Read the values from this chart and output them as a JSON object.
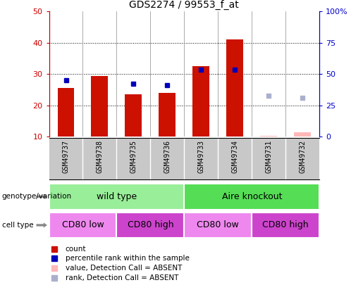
{
  "title": "GDS2274 / 99553_f_at",
  "samples": [
    "GSM49737",
    "GSM49738",
    "GSM49735",
    "GSM49736",
    "GSM49733",
    "GSM49734",
    "GSM49731",
    "GSM49732"
  ],
  "count_values": [
    25.5,
    29.5,
    23.5,
    24.0,
    32.5,
    41.0,
    null,
    null
  ],
  "count_absent": [
    null,
    null,
    null,
    null,
    null,
    null,
    10.3,
    11.5
  ],
  "rank_values": [
    28.0,
    null,
    27.0,
    26.5,
    31.5,
    31.5,
    null,
    null
  ],
  "rank_absent": [
    null,
    null,
    null,
    null,
    null,
    null,
    23.0,
    22.5
  ],
  "ylim_left": [
    10,
    50
  ],
  "ylim_right": [
    0,
    100
  ],
  "yticks_left": [
    10,
    20,
    30,
    40,
    50
  ],
  "yticks_right": [
    0,
    25,
    50,
    75,
    100
  ],
  "ytick_labels_right": [
    "0",
    "25",
    "50",
    "75",
    "100%"
  ],
  "bar_color": "#cc1100",
  "bar_absent_color": "#ffb8b8",
  "rank_color": "#0000bb",
  "rank_absent_color": "#aab0cc",
  "ax_left_color": "#cc0000",
  "ax_right_color": "#0000cc",
  "bar_width": 0.5,
  "chart_bg": "#ffffff",
  "sample_row_bg": "#c8c8c8",
  "genotype_groups": [
    {
      "label": "wild type",
      "start": 0,
      "end": 4,
      "color": "#99ee99"
    },
    {
      "label": "Aire knockout",
      "start": 4,
      "end": 8,
      "color": "#55dd55"
    }
  ],
  "cell_groups": [
    {
      "label": "CD80 low",
      "start": 0,
      "end": 2,
      "color": "#ee88ee"
    },
    {
      "label": "CD80 high",
      "start": 2,
      "end": 4,
      "color": "#cc44cc"
    },
    {
      "label": "CD80 low",
      "start": 4,
      "end": 6,
      "color": "#ee88ee"
    },
    {
      "label": "CD80 high",
      "start": 6,
      "end": 8,
      "color": "#cc44cc"
    }
  ],
  "legend_items": [
    {
      "label": "count",
      "color": "#cc1100"
    },
    {
      "label": "percentile rank within the sample",
      "color": "#0000bb"
    },
    {
      "label": "value, Detection Call = ABSENT",
      "color": "#ffb8b8"
    },
    {
      "label": "rank, Detection Call = ABSENT",
      "color": "#aab0cc"
    }
  ],
  "genotype_label": "genotype/variation",
  "cell_label": "cell type"
}
